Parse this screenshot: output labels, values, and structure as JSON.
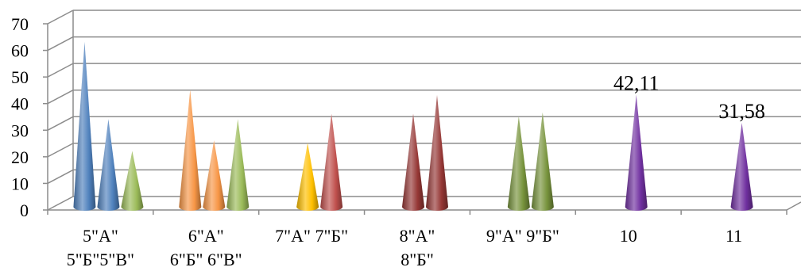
{
  "chart_data": {
    "type": "bar",
    "style": "3d-cone",
    "title": "",
    "xlabel": "",
    "ylabel": "",
    "ylim": [
      0,
      70
    ],
    "yticks": [
      "0",
      "10",
      "20",
      "30",
      "40",
      "50",
      "60",
      "70"
    ],
    "grid": true,
    "legend": "none",
    "categories": [
      {
        "lines": [
          "5\"А\"",
          "5\"Б\"5\"В\""
        ]
      },
      {
        "lines": [
          "6\"А\"",
          "6\"Б\" 6\"В\""
        ]
      },
      {
        "lines": [
          "7\"А\" 7\"Б\""
        ]
      },
      {
        "lines": [
          "8\"А\"",
          "8\"Б\""
        ]
      },
      {
        "lines": [
          "9\"А\" 9\"Б\""
        ]
      },
      {
        "lines": [
          "10"
        ]
      },
      {
        "lines": [
          "11"
        ]
      }
    ],
    "bars": [
      {
        "group": 0,
        "value": 62,
        "color": "#4f81bd"
      },
      {
        "group": 0,
        "value": 33,
        "color": "#4f81bd"
      },
      {
        "group": 0,
        "value": 21,
        "color": "#9bbb59"
      },
      {
        "group": 1,
        "value": 44,
        "color": "#f79646"
      },
      {
        "group": 1,
        "value": 25,
        "color": "#f79646"
      },
      {
        "group": 1,
        "value": 33,
        "color": "#9bbb59"
      },
      {
        "group": 2,
        "value": 24,
        "color": "#ffc000"
      },
      {
        "group": 2,
        "value": 35,
        "color": "#c0504d"
      },
      {
        "group": 3,
        "value": 35,
        "color": "#953735"
      },
      {
        "group": 3,
        "value": 42,
        "color": "#953735"
      },
      {
        "group": 4,
        "value": 34,
        "color": "#77933c"
      },
      {
        "group": 4,
        "value": 35.5,
        "color": "#77933c"
      },
      {
        "group": 5,
        "value": 42.11,
        "color": "#7030a0",
        "label": "42,11"
      },
      {
        "group": 6,
        "value": 31.58,
        "color": "#7030a0",
        "label": "31,58"
      }
    ]
  }
}
